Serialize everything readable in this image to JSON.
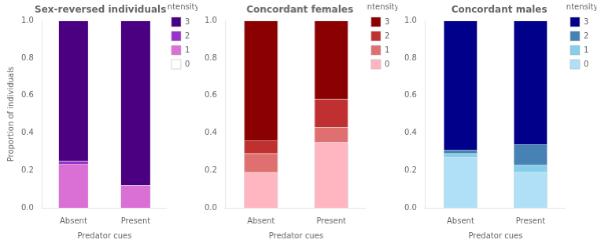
{
  "chart_data": [
    {
      "type": "bar",
      "stacked": true,
      "title": "Sex-reversed individuals",
      "xlabel": "Predator cues",
      "ylabel": "Proportion of individuals",
      "categories": [
        "Absent",
        "Present"
      ],
      "series": [
        {
          "name": "0",
          "color": "#ffffff",
          "values": [
            0.0,
            0.0
          ]
        },
        {
          "name": "1",
          "color": "#da70d6",
          "values": [
            0.235,
            0.12
          ]
        },
        {
          "name": "2",
          "color": "#9932cc",
          "values": [
            0.015,
            0.0
          ]
        },
        {
          "name": "3",
          "color": "#4b0082",
          "values": [
            0.75,
            0.88
          ]
        }
      ],
      "ylim": [
        0.0,
        1.0
      ],
      "yticks": [
        {
          "value": 0.0,
          "label": "0.0"
        },
        0.2,
        0.4,
        0.6,
        0.8,
        {
          "value": 1.0,
          "label": "1.0"
        }
      ],
      "grid": false,
      "legend": "upper right",
      "legend_title": "Intensity"
    },
    {
      "type": "bar",
      "stacked": true,
      "title": "Concordant females",
      "xlabel": "Predator cues",
      "categories": [
        "Absent",
        "Present"
      ],
      "series": [
        {
          "name": "0",
          "color": "#ffb6c1",
          "values": [
            0.19,
            0.35
          ]
        },
        {
          "name": "1",
          "color": "#e07070",
          "values": [
            0.1,
            0.08
          ]
        },
        {
          "name": "2",
          "color": "#c03030",
          "values": [
            0.07,
            0.15
          ]
        },
        {
          "name": "3",
          "color": "#8b0000",
          "values": [
            0.64,
            0.42
          ]
        }
      ],
      "ylim": [
        0.0,
        1.0
      ],
      "yticks": [
        {
          "value": 0.0,
          "label": "0.0"
        },
        0.2,
        0.4,
        0.6,
        0.8,
        {
          "value": 1.0,
          "label": "1.0"
        }
      ],
      "grid": false,
      "legend": "upper right",
      "legend_title": "Intensity"
    },
    {
      "type": "bar",
      "stacked": true,
      "title": "Concordant males",
      "xlabel": "Predator cues",
      "categories": [
        "Absent",
        "Present"
      ],
      "series": [
        {
          "name": "0",
          "color": "#b0e0f8",
          "values": [
            0.27,
            0.19
          ]
        },
        {
          "name": "1",
          "color": "#87ceeb",
          "values": [
            0.02,
            0.04
          ]
        },
        {
          "name": "2",
          "color": "#4682b4",
          "values": [
            0.02,
            0.11
          ]
        },
        {
          "name": "3",
          "color": "#00008b",
          "values": [
            0.69,
            0.66
          ]
        }
      ],
      "ylim": [
        0.0,
        1.0
      ],
      "yticks": [
        {
          "value": 0.0,
          "label": "0.0"
        },
        0.2,
        0.4,
        0.6,
        0.8,
        {
          "value": 1.0,
          "label": "1.0"
        }
      ],
      "grid": false,
      "legend": "upper right",
      "legend_title": "Intensity"
    }
  ]
}
